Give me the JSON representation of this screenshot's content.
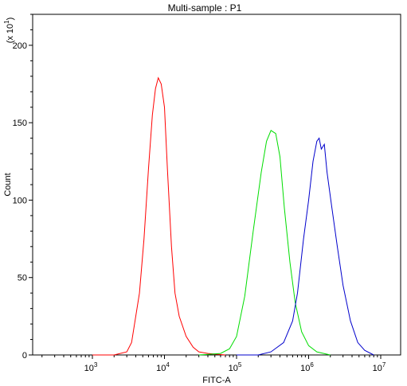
{
  "chart_data": {
    "type": "line",
    "title": "Multi-sample : P1",
    "xlabel": "FITC-A",
    "ylabel": "Count",
    "y_multiplier": "(x 10^1)",
    "x_scale": "log",
    "xlim": [
      100,
      10000000
    ],
    "ylim": [
      0,
      220
    ],
    "x_ticks": [
      {
        "base": "10",
        "exp": "3",
        "value": 1000
      },
      {
        "base": "10",
        "exp": "4",
        "value": 10000
      },
      {
        "base": "10",
        "exp": "5",
        "value": 100000
      },
      {
        "base": "10",
        "exp": "6",
        "value": 1000000
      },
      {
        "base": "10",
        "exp": "7",
        "value": 10000000
      }
    ],
    "y_ticks": [
      "0",
      "50",
      "100",
      "150",
      "200"
    ],
    "grid": false,
    "series": [
      {
        "color": "#ff0000",
        "points": [
          [
            1000,
            0
          ],
          [
            2000,
            0
          ],
          [
            3000,
            2
          ],
          [
            3500,
            8
          ],
          [
            4500,
            40
          ],
          [
            5200,
            75
          ],
          [
            6000,
            120
          ],
          [
            6800,
            155
          ],
          [
            7500,
            172
          ],
          [
            8200,
            179
          ],
          [
            9000,
            175
          ],
          [
            10000,
            160
          ],
          [
            11000,
            120
          ],
          [
            12500,
            70
          ],
          [
            14000,
            40
          ],
          [
            16000,
            25
          ],
          [
            20000,
            12
          ],
          [
            25000,
            5
          ],
          [
            30000,
            2
          ],
          [
            40000,
            1
          ],
          [
            70000,
            0
          ]
        ]
      },
      {
        "color": "#00dd00",
        "points": [
          [
            30000,
            0
          ],
          [
            60000,
            1
          ],
          [
            80000,
            4
          ],
          [
            100000,
            12
          ],
          [
            130000,
            38
          ],
          [
            170000,
            80
          ],
          [
            220000,
            118
          ],
          [
            260000,
            138
          ],
          [
            300000,
            145
          ],
          [
            350000,
            143
          ],
          [
            400000,
            128
          ],
          [
            460000,
            95
          ],
          [
            550000,
            60
          ],
          [
            650000,
            34
          ],
          [
            800000,
            15
          ],
          [
            1000000,
            6
          ],
          [
            1300000,
            2
          ],
          [
            2000000,
            0
          ]
        ]
      },
      {
        "color": "#0000cc",
        "points": [
          [
            100000,
            0
          ],
          [
            200000,
            0
          ],
          [
            300000,
            2
          ],
          [
            450000,
            8
          ],
          [
            600000,
            22
          ],
          [
            700000,
            40
          ],
          [
            850000,
            75
          ],
          [
            1000000,
            100
          ],
          [
            1150000,
            125
          ],
          [
            1300000,
            138
          ],
          [
            1400000,
            140
          ],
          [
            1500000,
            133
          ],
          [
            1650000,
            136
          ],
          [
            1800000,
            118
          ],
          [
            2100000,
            95
          ],
          [
            2500000,
            70
          ],
          [
            3000000,
            45
          ],
          [
            3800000,
            22
          ],
          [
            4800000,
            8
          ],
          [
            6000000,
            3
          ],
          [
            8000000,
            0
          ]
        ]
      }
    ]
  }
}
